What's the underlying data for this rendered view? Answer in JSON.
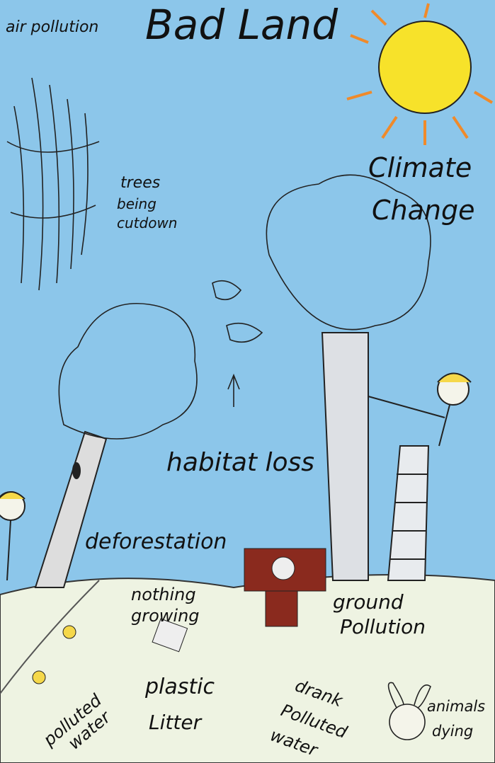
{
  "title": "Bad Land",
  "labels": [
    {
      "lines": [
        "air pollution"
      ]
    },
    {
      "lines": [
        "trees",
        "being",
        "cutdown"
      ]
    },
    {
      "lines": [
        "Climate",
        "Change"
      ]
    },
    {
      "lines": [
        "habitat loss"
      ]
    },
    {
      "lines": [
        "deforestation"
      ]
    },
    {
      "lines": [
        "nothing",
        "growing"
      ]
    },
    {
      "lines": [
        "ground",
        "Pollution"
      ]
    },
    {
      "lines": [
        "polluted",
        "water"
      ]
    },
    {
      "lines": [
        "plastic",
        "Litter"
      ]
    },
    {
      "lines": [
        "drank",
        "Polluted",
        "water"
      ]
    },
    {
      "lines": [
        "animals",
        "dying"
      ]
    }
  ]
}
